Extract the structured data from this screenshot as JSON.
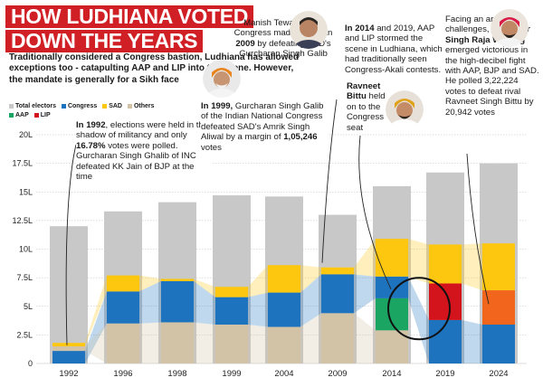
{
  "headline": {
    "line1": "HOW LUDHIANA VOTED",
    "line2": "DOWN THE YEARS"
  },
  "intro": "Traditionally considered a Congress bastion, Ludhiana has allowed exceptions too - catapulting AAP and LIP into the scene. However, the mandate is generally for a Sikh face",
  "legend": {
    "total": "Total electors",
    "congress": "Congress",
    "sad": "SAD",
    "others": "Others",
    "aap": "AAP",
    "lip": "LIP"
  },
  "colors": {
    "total": "#c8c8c8",
    "congress": "#1e73be",
    "sad": "#fdc70f",
    "others": "#d2c3a6",
    "aap": "#1aa562",
    "lip": "#d4141c",
    "bjp": "#f2651d",
    "headline_bg": "#d11f26"
  },
  "notes": {
    "n1992_a": "In 1992",
    "n1992_b": ", elections were held in the shadow of militancy and only ",
    "n1992_c": "16.78%",
    "n1992_d": " votes were polled. Gurcharan Singh Ghalib of INC defeated KK Jain of BJP at the time",
    "n1999_a": "In 1999,",
    "n1999_b": " Gurcharan Singh Galib of the Indian National Congress defeated SAD's Amrik Singh Aliwal by a margin of ",
    "n1999_c": "1,05,246",
    "n1999_d": " votes",
    "n2009_a": "Manish Tewari of the Congress made history in ",
    "n2009_b": "2009",
    "n2009_c": " by defeating SAD's Gurcharan Singh Galib",
    "n2014_a": "In 2014",
    "n2014_b": " and 2019, AAP and LIP stormed the scene in Ludhiana, which had traditionally seen Congress-Akali contests.",
    "n2014_c": "Ravneet Bittu",
    "n2014_d": " held on to the Congress seat",
    "n2024_a": "Facing an array of challenges, ",
    "n2024_b": "Amrinder Singh Raja Warring",
    "n2024_c": " emerged victorious in the high-decibel fight with AAP, BJP and SAD. He polled 3,22,224 votes to defeat rival Ravneet Singh Bittu by 20,942 votes"
  },
  "chart_data": {
    "type": "bar",
    "title": "HOW LUDHIANA VOTED DOWN THE YEARS",
    "categories": [
      "1992",
      "1996",
      "1998",
      "1999",
      "2004",
      "2009",
      "2014",
      "2019",
      "2024"
    ],
    "y_unit": "L",
    "yticks": [
      0,
      2.5,
      5,
      7.5,
      10,
      12.5,
      15,
      17.5,
      20
    ],
    "ytick_labels": [
      "0",
      "2.5L",
      "5L",
      "7.5L",
      "10L",
      "12.5L",
      "15L",
      "17.5L",
      "20L"
    ],
    "ylim": [
      0,
      20
    ],
    "grid": true,
    "legend_position": "top-left",
    "total_electors": [
      12.0,
      13.3,
      14.1,
      14.7,
      14.6,
      13.0,
      15.5,
      16.7,
      17.5
    ],
    "stacks": [
      [
        {
          "party": "Congress",
          "value": 1.1
        },
        {
          "party": "Others",
          "value": 0.4
        },
        {
          "party": "SAD",
          "value": 0.3
        }
      ],
      [
        {
          "party": "Others",
          "value": 3.5
        },
        {
          "party": "Congress",
          "value": 2.8
        },
        {
          "party": "SAD",
          "value": 1.4
        }
      ],
      [
        {
          "party": "Others",
          "value": 3.6
        },
        {
          "party": "Congress",
          "value": 3.6
        },
        {
          "party": "SAD",
          "value": 0.2
        }
      ],
      [
        {
          "party": "Others",
          "value": 3.4
        },
        {
          "party": "Congress",
          "value": 2.4
        },
        {
          "party": "SAD",
          "value": 0.9
        }
      ],
      [
        {
          "party": "Others",
          "value": 3.2
        },
        {
          "party": "Congress",
          "value": 3.0
        },
        {
          "party": "SAD",
          "value": 2.4
        }
      ],
      [
        {
          "party": "Others",
          "value": 4.4
        },
        {
          "party": "Congress",
          "value": 3.4
        },
        {
          "party": "SAD",
          "value": 0.6
        }
      ],
      [
        {
          "party": "Others",
          "value": 2.9
        },
        {
          "party": "AAP",
          "value": 2.8
        },
        {
          "party": "Congress",
          "value": 1.9
        },
        {
          "party": "SAD",
          "value": 3.3
        }
      ],
      [
        {
          "party": "Congress",
          "value": 3.8
        },
        {
          "party": "LIP",
          "value": 3.2
        },
        {
          "party": "SAD",
          "value": 3.4
        }
      ],
      [
        {
          "party": "Congress",
          "value": 3.4
        },
        {
          "party": "BJP",
          "value": 3.0
        },
        {
          "party": "SAD",
          "value": 4.1
        }
      ]
    ]
  }
}
